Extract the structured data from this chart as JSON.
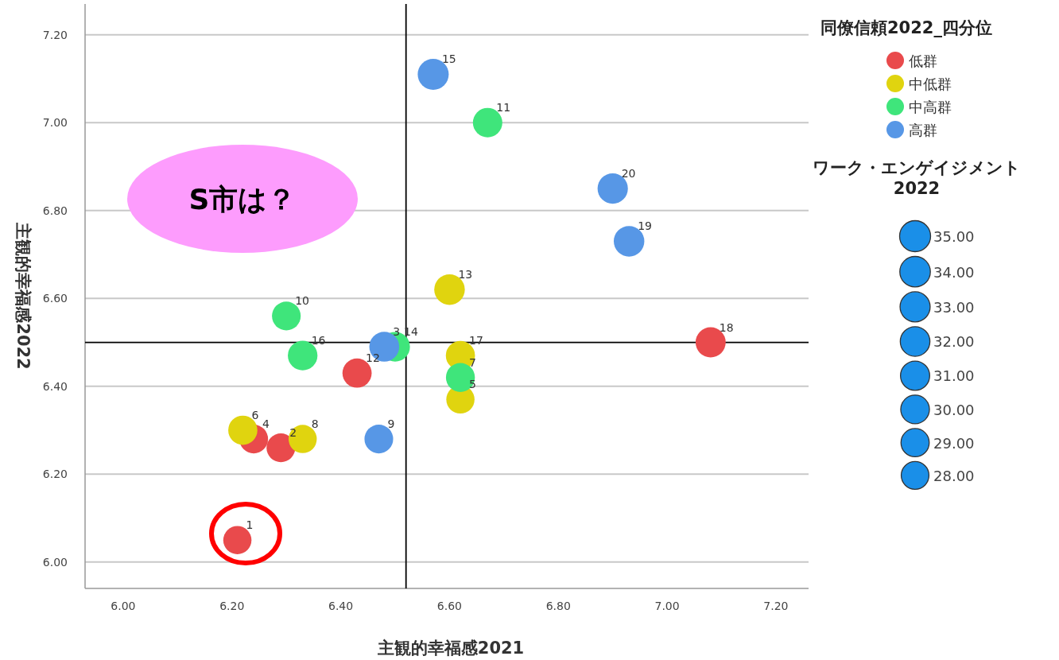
{
  "chart_data": {
    "type": "bubble",
    "xlabel": "主観的幸福感2021",
    "ylabel": "主観的幸福感2022",
    "legend_title": "同僚信頼2022_四分位",
    "xlim": [
      5.93,
      7.26
    ],
    "ylim": [
      5.94,
      7.27
    ],
    "xticks": [
      {
        "value": 6.0,
        "label": "6.00"
      },
      {
        "value": 6.2,
        "label": "6.20"
      },
      {
        "value": 6.4,
        "label": "6.40"
      },
      {
        "value": 6.6,
        "label": "6.60"
      },
      {
        "value": 6.8,
        "label": "6.80"
      },
      {
        "value": 7.0,
        "label": "7.00"
      },
      {
        "value": 7.2,
        "label": "7.20"
      }
    ],
    "yticks": [
      {
        "value": 6.0,
        "label": "6.00"
      },
      {
        "value": 6.2,
        "label": "6.20"
      },
      {
        "value": 6.4,
        "label": "6.40"
      },
      {
        "value": 6.6,
        "label": "6.60"
      },
      {
        "value": 6.8,
        "label": "6.80"
      },
      {
        "value": 7.0,
        "label": "7.00"
      },
      {
        "value": 7.2,
        "label": "7.20"
      }
    ],
    "grid": "y",
    "legend": "top right",
    "size_legend": [
      {
        "value": 35,
        "label": "35.00"
      },
      {
        "value": 34,
        "label": "34.00"
      },
      {
        "value": 33,
        "label": "33.00"
      },
      {
        "value": 32,
        "label": "32.00"
      },
      {
        "value": 31,
        "label": "31.00"
      },
      {
        "value": 30,
        "label": "30.00"
      },
      {
        "value": 29,
        "label": "29.00"
      },
      {
        "value": 28,
        "label": "28.00"
      }
    ],
    "ref_lines": [
      {
        "axis": "x",
        "value": 6.52,
        "color": "#000000"
      },
      {
        "axis": "y",
        "value": 6.5,
        "color": "#000000"
      }
    ],
    "series": [
      {
        "name": "低群",
        "color": "#e94a4c",
        "x": [
          6.21,
          6.29,
          6.24,
          6.43,
          7.08
        ],
        "values": [
          6.05,
          6.26,
          6.28,
          6.43,
          6.5
        ],
        "sizes": [
          29,
          30,
          30,
          31,
          33
        ]
      },
      {
        "name": "中低群",
        "color": "#e0d40f",
        "x": [
          6.22,
          6.33,
          6.62,
          6.62,
          6.6
        ],
        "values": [
          6.3,
          6.28,
          6.47,
          6.37,
          6.62
        ],
        "sizes": [
          31,
          29,
          31,
          29,
          34
        ]
      },
      {
        "name": "中高群",
        "color": "#3fe57b",
        "x": [
          6.3,
          6.33,
          6.5,
          6.62,
          6.67
        ],
        "values": [
          6.56,
          6.47,
          6.49,
          6.42,
          7.0
        ],
        "sizes": [
          30,
          32,
          32,
          30.5,
          31.5
        ]
      },
      {
        "name": "高群",
        "color": "#5797e6",
        "x": [
          6.48,
          6.47,
          6.57,
          6.93,
          6.9
        ],
        "values": [
          6.49,
          6.28,
          7.11,
          6.73,
          6.85
        ],
        "sizes": [
          32.5,
          30,
          35,
          34,
          33.5
        ]
      }
    ],
    "annotations": [
      "S市は？",
      "ワーク・エンゲイジメント2022",
      {
        "text": "1",
        "x": 6.21,
        "y": 6.05
      },
      {
        "text": "2",
        "x": 6.29,
        "y": 6.26
      },
      {
        "text": "4",
        "x": 6.24,
        "y": 6.28
      },
      {
        "text": "12",
        "x": 6.43,
        "y": 6.43
      },
      {
        "text": "18",
        "x": 7.08,
        "y": 6.5
      },
      {
        "text": "6",
        "x": 6.22,
        "y": 6.3
      },
      {
        "text": "8",
        "x": 6.33,
        "y": 6.28
      },
      {
        "text": "17",
        "x": 6.62,
        "y": 6.47
      },
      {
        "text": "5",
        "x": 6.62,
        "y": 6.37
      },
      {
        "text": "13",
        "x": 6.6,
        "y": 6.62
      },
      {
        "text": "10",
        "x": 6.3,
        "y": 6.56
      },
      {
        "text": "16",
        "x": 6.33,
        "y": 6.47
      },
      {
        "text": "14",
        "x": 6.5,
        "y": 6.49
      },
      {
        "text": "7",
        "x": 6.62,
        "y": 6.42
      },
      {
        "text": "11",
        "x": 6.67,
        "y": 7.0
      },
      {
        "text": "3",
        "x": 6.48,
        "y": 6.49
      },
      {
        "text": "9",
        "x": 6.47,
        "y": 6.28
      },
      {
        "text": "15",
        "x": 6.57,
        "y": 7.11
      },
      {
        "text": "19",
        "x": 6.93,
        "y": 6.73
      },
      {
        "text": "20",
        "x": 6.9,
        "y": 6.85
      }
    ]
  }
}
